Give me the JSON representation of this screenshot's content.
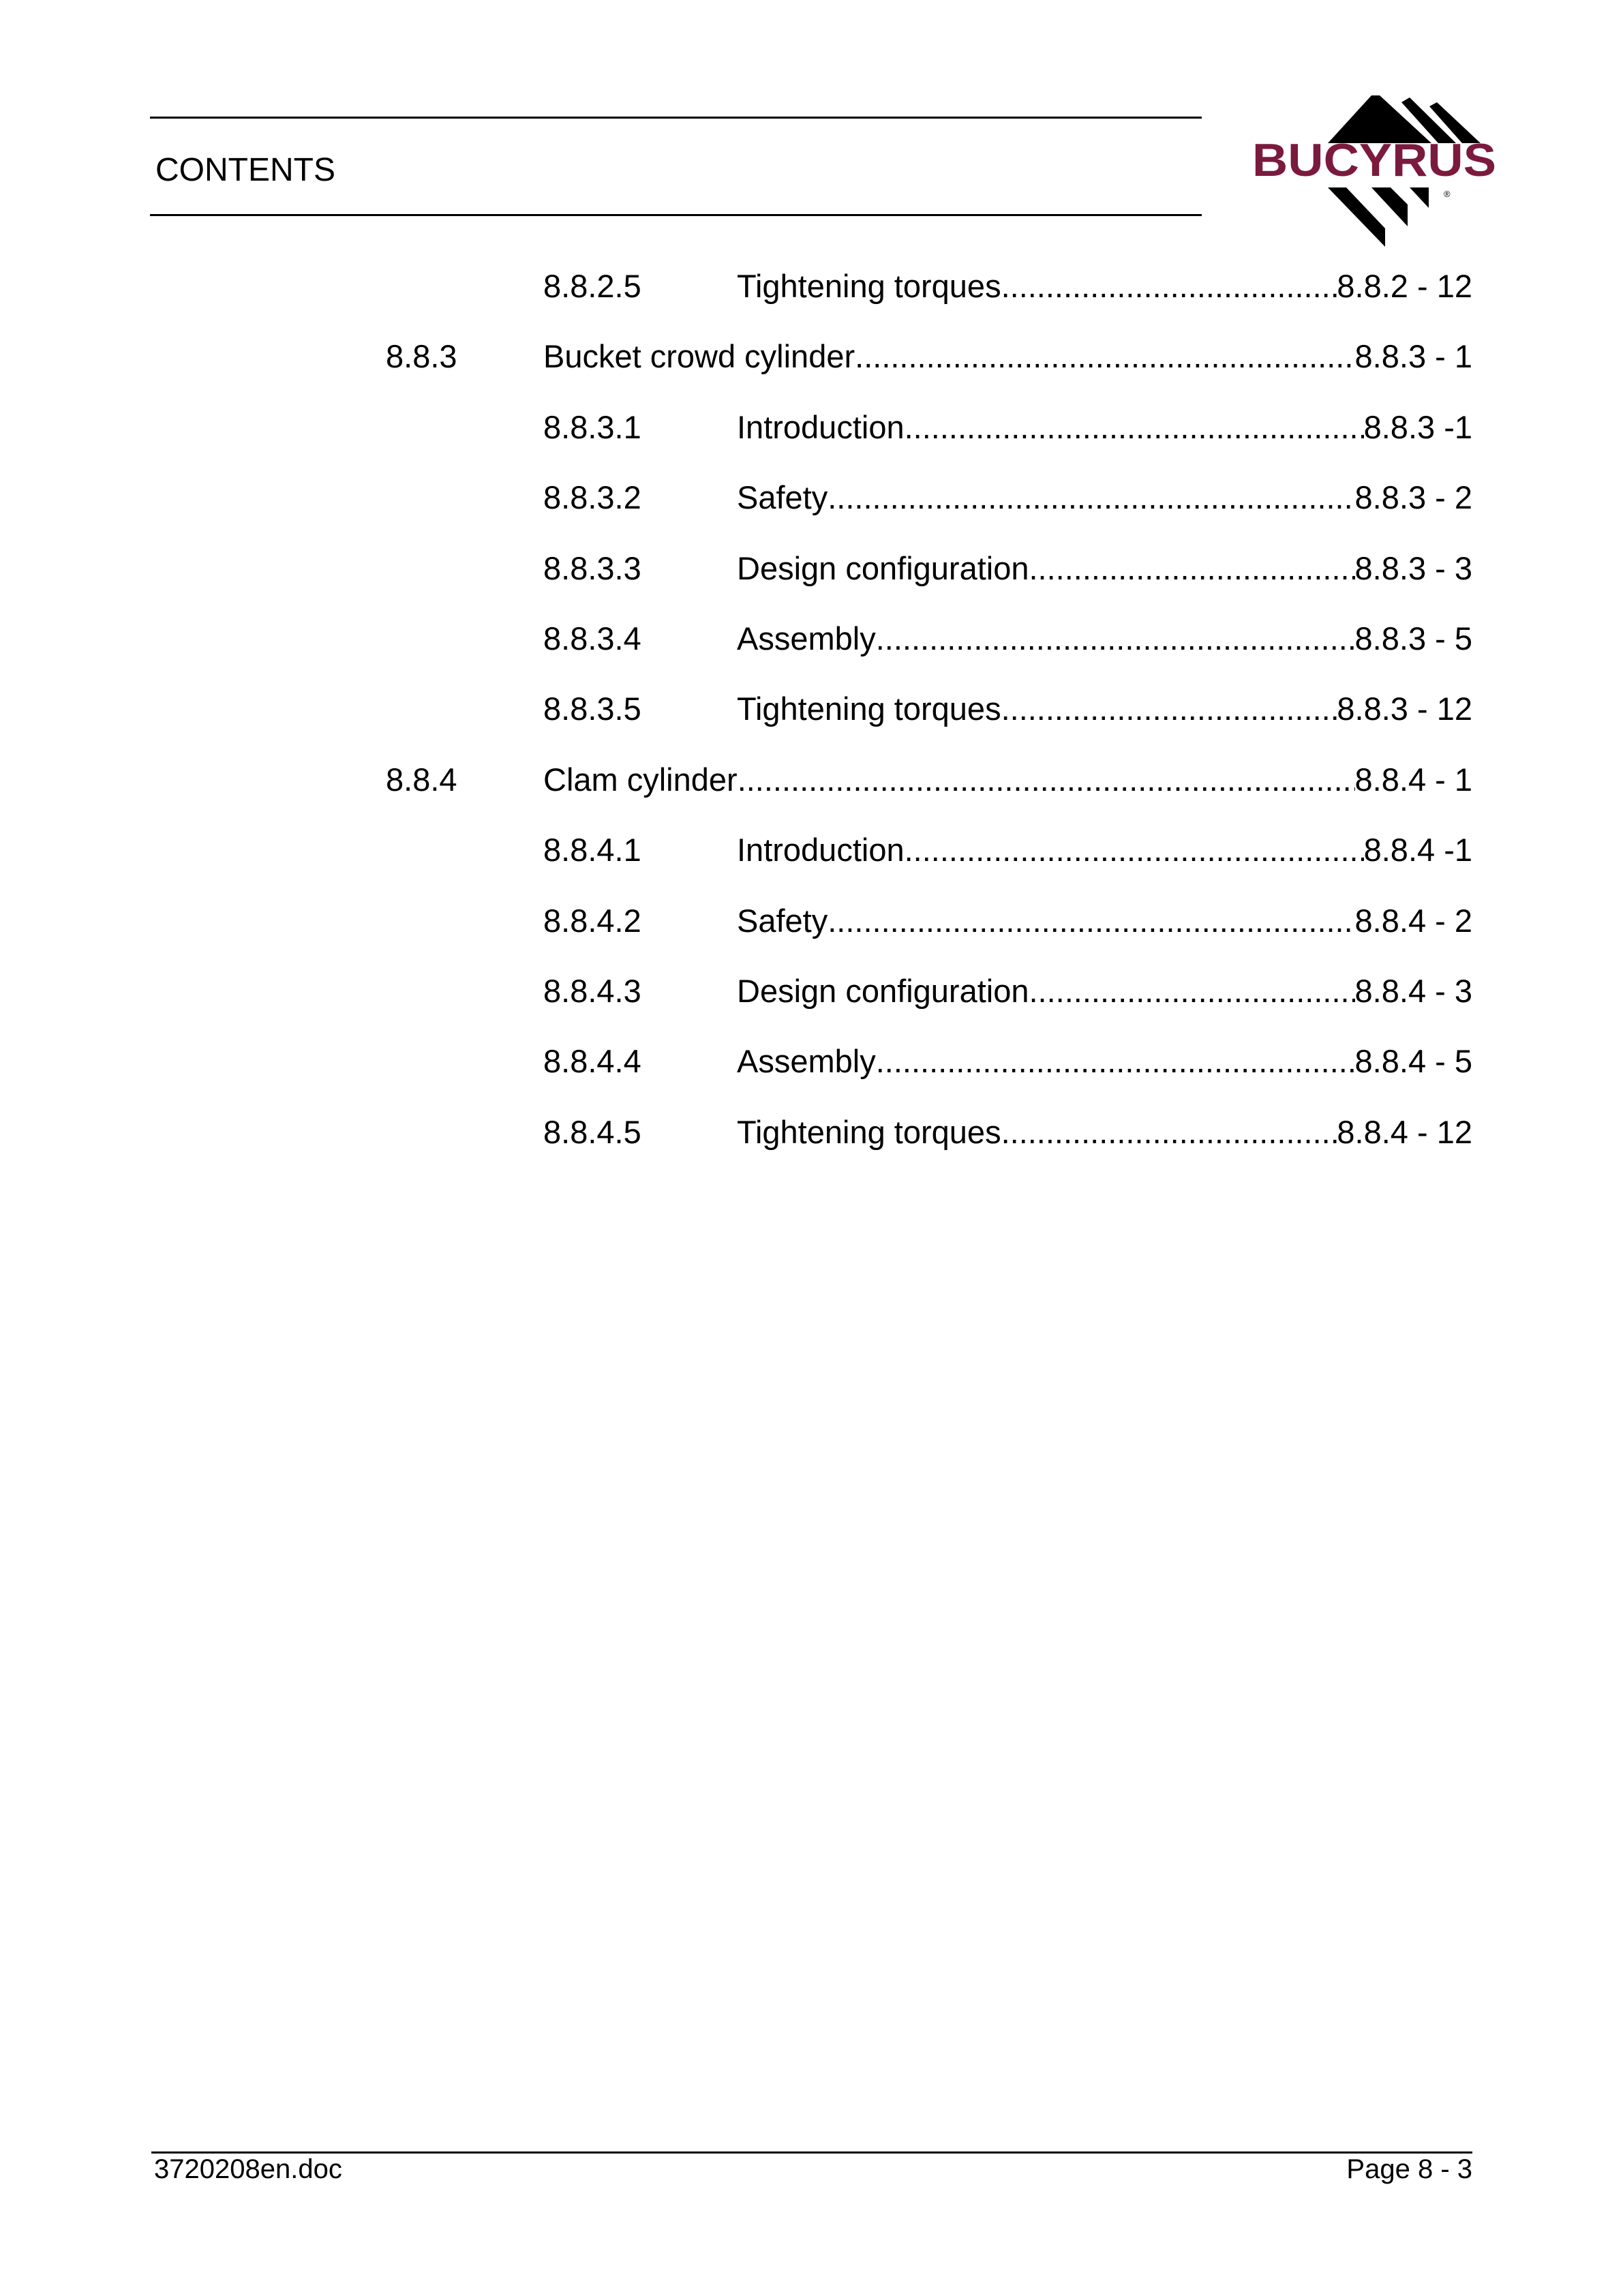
{
  "header": {
    "title": "CONTENTS",
    "logo_text": "BUCYRUS",
    "logo_color": "#7a1a3c"
  },
  "toc": [
    {
      "level": 3,
      "number": "8.8.2.5",
      "title": "Tightening torques",
      "page": "8.8.2 - 12"
    },
    {
      "level": 2,
      "number": "8.8.3",
      "title": "Bucket crowd cylinder",
      "page": "8.8.3 - 1"
    },
    {
      "level": 3,
      "number": "8.8.3.1",
      "title": "Introduction",
      "page": "8.8.3 -1"
    },
    {
      "level": 3,
      "number": "8.8.3.2",
      "title": "Safety",
      "page": "8.8.3 - 2"
    },
    {
      "level": 3,
      "number": "8.8.3.3",
      "title": "Design configuration",
      "page": "8.8.3 - 3"
    },
    {
      "level": 3,
      "number": "8.8.3.4",
      "title": "Assembly",
      "page": "8.8.3 - 5"
    },
    {
      "level": 3,
      "number": "8.8.3.5",
      "title": "Tightening torques",
      "page": "8.8.3 - 12"
    },
    {
      "level": 2,
      "number": "8.8.4",
      "title": "Clam cylinder",
      "page": "8.8.4 - 1"
    },
    {
      "level": 3,
      "number": "8.8.4.1",
      "title": "Introduction",
      "page": "8.8.4 -1"
    },
    {
      "level": 3,
      "number": "8.8.4.2",
      "title": "Safety",
      "page": "8.8.4 - 2"
    },
    {
      "level": 3,
      "number": "8.8.4.3",
      "title": "Design configuration",
      "page": "8.8.4 - 3"
    },
    {
      "level": 3,
      "number": "8.8.4.4",
      "title": "Assembly",
      "page": "8.8.4 - 5"
    },
    {
      "level": 3,
      "number": "8.8.4.5",
      "title": "Tightening torques",
      "page": "8.8.4 - 12"
    }
  ],
  "footer": {
    "filename": "3720208en.doc",
    "page": "Page 8 - 3"
  }
}
